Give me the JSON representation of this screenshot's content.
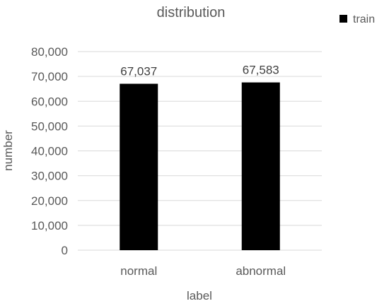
{
  "chart_data": {
    "type": "bar",
    "title": "distribution",
    "xlabel": "label",
    "ylabel": "number",
    "categories": [
      "normal",
      "abnormal"
    ],
    "series": [
      {
        "name": "train",
        "values": [
          67037,
          67583
        ],
        "color": "#000000"
      }
    ],
    "data_labels": [
      "67,037",
      "67,583"
    ],
    "ylim": [
      0,
      80000
    ],
    "yticks": [
      0,
      10000,
      20000,
      30000,
      40000,
      50000,
      60000,
      70000,
      80000
    ],
    "ytick_labels": [
      "0",
      "10,000",
      "20,000",
      "30,000",
      "40,000",
      "50,000",
      "60,000",
      "70,000",
      "80,000"
    ],
    "grid": true,
    "grid_color": "#d9d9d9",
    "legend_position": "top-right"
  }
}
